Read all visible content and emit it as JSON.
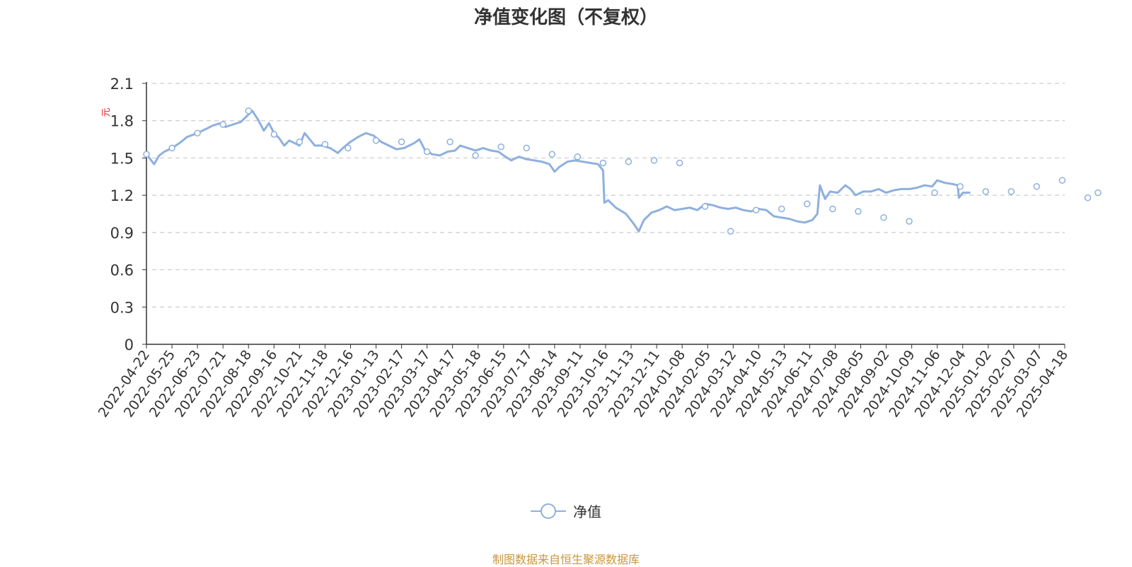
{
  "chart_data": {
    "type": "line",
    "title": "净值变化图（不复权）",
    "ylabel": "元",
    "ylim": [
      0,
      2.1
    ],
    "yticks": [
      "0",
      "0.3",
      "0.6",
      "0.9",
      "1.2",
      "1.5",
      "1.8",
      "2.1"
    ],
    "x_tick_labels": [
      "2022-04-22",
      "2022-05-25",
      "2022-06-23",
      "2022-07-21",
      "2022-08-18",
      "2022-09-16",
      "2022-10-21",
      "2022-11-18",
      "2022-12-16",
      "2023-01-13",
      "2023-02-17",
      "2023-03-17",
      "2023-04-17",
      "2023-05-18",
      "2023-06-15",
      "2023-07-17",
      "2023-08-14",
      "2023-09-11",
      "2023-10-16",
      "2023-11-13",
      "2023-12-11",
      "2024-01-08",
      "2024-02-05",
      "2024-03-12",
      "2024-04-10",
      "2024-05-13",
      "2024-06-11",
      "2024-07-08",
      "2024-08-05",
      "2024-09-02",
      "2024-10-09",
      "2024-11-06",
      "2024-12-04",
      "2025-01-02",
      "2025-02-07",
      "2025-03-07",
      "2025-04-18"
    ],
    "grid": true,
    "legend_position": "bottom",
    "series": [
      {
        "name": "净值",
        "color": "#8eb0de",
        "marker": "hollow-circle",
        "points": [
          [
            0,
            1.53
          ],
          [
            0.3,
            1.45
          ],
          [
            0.5,
            1.52
          ],
          [
            0.7,
            1.55
          ],
          [
            1.0,
            1.58
          ],
          [
            1.3,
            1.62
          ],
          [
            1.6,
            1.67
          ],
          [
            2.0,
            1.7
          ],
          [
            2.3,
            1.73
          ],
          [
            2.6,
            1.76
          ],
          [
            2.9,
            1.78
          ],
          [
            3.1,
            1.75
          ],
          [
            3.4,
            1.77
          ],
          [
            3.7,
            1.79
          ],
          [
            4.0,
            1.85
          ],
          [
            4.15,
            1.88
          ],
          [
            4.4,
            1.8
          ],
          [
            4.6,
            1.72
          ],
          [
            4.8,
            1.78
          ],
          [
            5.0,
            1.7
          ],
          [
            5.2,
            1.66
          ],
          [
            5.4,
            1.6
          ],
          [
            5.6,
            1.64
          ],
          [
            5.8,
            1.62
          ],
          [
            6.0,
            1.6
          ],
          [
            6.2,
            1.7
          ],
          [
            6.4,
            1.65
          ],
          [
            6.6,
            1.6
          ],
          [
            6.9,
            1.6
          ],
          [
            7.2,
            1.58
          ],
          [
            7.5,
            1.54
          ],
          [
            7.7,
            1.58
          ],
          [
            8.0,
            1.63
          ],
          [
            8.3,
            1.67
          ],
          [
            8.6,
            1.7
          ],
          [
            8.9,
            1.68
          ],
          [
            9.2,
            1.63
          ],
          [
            9.5,
            1.6
          ],
          [
            9.8,
            1.57
          ],
          [
            10.1,
            1.58
          ],
          [
            10.5,
            1.62
          ],
          [
            10.7,
            1.65
          ],
          [
            10.9,
            1.57
          ],
          [
            11.2,
            1.53
          ],
          [
            11.5,
            1.52
          ],
          [
            11.8,
            1.55
          ],
          [
            12.1,
            1.56
          ],
          [
            12.3,
            1.6
          ],
          [
            12.6,
            1.58
          ],
          [
            12.9,
            1.56
          ],
          [
            13.2,
            1.58
          ],
          [
            13.5,
            1.56
          ],
          [
            13.8,
            1.55
          ],
          [
            14.0,
            1.52
          ],
          [
            14.3,
            1.48
          ],
          [
            14.6,
            1.51
          ],
          [
            14.9,
            1.49
          ],
          [
            15.2,
            1.48
          ],
          [
            15.5,
            1.47
          ],
          [
            15.8,
            1.45
          ],
          [
            16.0,
            1.39
          ],
          [
            16.2,
            1.43
          ],
          [
            16.5,
            1.47
          ],
          [
            16.8,
            1.48
          ],
          [
            17.1,
            1.47
          ],
          [
            17.4,
            1.46
          ],
          [
            17.7,
            1.45
          ],
          [
            17.9,
            1.4
          ],
          [
            17.95,
            1.14
          ],
          [
            18.1,
            1.16
          ],
          [
            18.4,
            1.1
          ],
          [
            18.8,
            1.05
          ],
          [
            19.1,
            0.97
          ],
          [
            19.3,
            0.91
          ],
          [
            19.5,
            1.0
          ],
          [
            19.8,
            1.06
          ],
          [
            20.1,
            1.08
          ],
          [
            20.4,
            1.11
          ],
          [
            20.7,
            1.08
          ],
          [
            21.0,
            1.09
          ],
          [
            21.3,
            1.1
          ],
          [
            21.6,
            1.08
          ],
          [
            21.9,
            1.13
          ],
          [
            22.2,
            1.12
          ],
          [
            22.5,
            1.1
          ],
          [
            22.8,
            1.09
          ],
          [
            23.1,
            1.1
          ],
          [
            23.4,
            1.08
          ],
          [
            23.7,
            1.07
          ],
          [
            24.0,
            1.09
          ],
          [
            24.3,
            1.08
          ],
          [
            24.6,
            1.03
          ],
          [
            24.9,
            1.02
          ],
          [
            25.2,
            1.01
          ],
          [
            25.5,
            0.99
          ],
          [
            25.8,
            0.98
          ],
          [
            26.1,
            1.0
          ],
          [
            26.3,
            1.05
          ],
          [
            26.4,
            1.28
          ],
          [
            26.6,
            1.17
          ],
          [
            26.8,
            1.23
          ],
          [
            27.1,
            1.22
          ],
          [
            27.4,
            1.28
          ],
          [
            27.6,
            1.25
          ],
          [
            27.8,
            1.2
          ],
          [
            28.1,
            1.23
          ],
          [
            28.4,
            1.23
          ],
          [
            28.7,
            1.25
          ],
          [
            29.0,
            1.22
          ],
          [
            29.3,
            1.24
          ],
          [
            29.6,
            1.25
          ],
          [
            29.9,
            1.25
          ],
          [
            30.2,
            1.26
          ],
          [
            30.5,
            1.28
          ],
          [
            30.8,
            1.27
          ],
          [
            31.0,
            1.32
          ],
          [
            31.3,
            1.3
          ],
          [
            31.6,
            1.29
          ],
          [
            31.8,
            1.28
          ],
          [
            31.85,
            1.18
          ],
          [
            32.0,
            1.22
          ],
          [
            32.3,
            1.22
          ]
        ],
        "marker_points": [
          [
            0,
            1.53
          ],
          [
            1.0,
            1.58
          ],
          [
            2.0,
            1.7
          ],
          [
            3.0,
            1.77
          ],
          [
            4.0,
            1.88
          ],
          [
            5.0,
            1.69
          ],
          [
            6.0,
            1.63
          ],
          [
            7.0,
            1.61
          ],
          [
            7.9,
            1.58
          ],
          [
            9.0,
            1.64
          ],
          [
            10.0,
            1.63
          ],
          [
            11.0,
            1.55
          ],
          [
            11.9,
            1.63
          ],
          [
            12.9,
            1.52
          ],
          [
            13.9,
            1.59
          ],
          [
            14.9,
            1.58
          ],
          [
            15.9,
            1.53
          ],
          [
            16.9,
            1.51
          ],
          [
            17.9,
            1.46
          ],
          [
            18.9,
            1.47
          ],
          [
            19.9,
            1.48
          ],
          [
            20.9,
            1.46
          ],
          [
            21.9,
            1.11
          ],
          [
            22.9,
            0.91
          ],
          [
            23.9,
            1.08
          ],
          [
            24.9,
            1.09
          ],
          [
            25.9,
            1.13
          ],
          [
            26.9,
            1.09
          ],
          [
            27.9,
            1.07
          ],
          [
            28.9,
            1.02
          ],
          [
            29.9,
            0.99
          ],
          [
            30.9,
            1.22
          ],
          [
            31.9,
            1.27
          ],
          [
            32.9,
            1.23
          ],
          [
            33.9,
            1.23
          ],
          [
            34.9,
            1.27
          ],
          [
            35.9,
            1.32
          ],
          [
            36.9,
            1.18
          ],
          [
            37.3,
            1.22
          ]
        ]
      }
    ]
  },
  "legend": {
    "label": "净值"
  },
  "source_note": "制图数据来自恒生聚源数据库",
  "source_color": "#c9963c",
  "ylabel_color": "#e02020"
}
